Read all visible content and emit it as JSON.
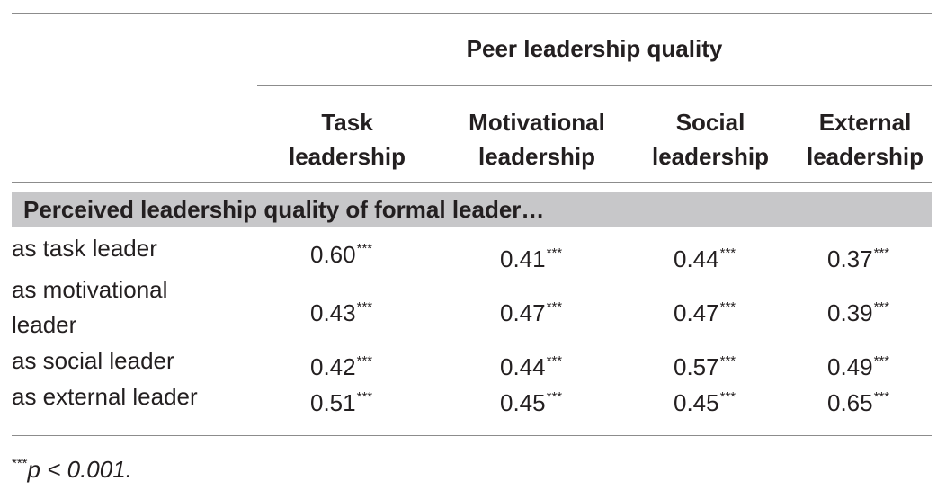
{
  "table": {
    "group_header": "Peer leadership quality",
    "columns": [
      {
        "line1": "Task",
        "line2": "leadership"
      },
      {
        "line1": "Motivational",
        "line2": "leadership"
      },
      {
        "line1": "Social",
        "line2": "leadership"
      },
      {
        "line1": "External",
        "line2": "leadership"
      }
    ],
    "section_label": "Perceived leadership quality of formal leader…",
    "rows": [
      {
        "label": "as task leader",
        "values": [
          "0.60",
          "0.41",
          "0.44",
          "0.37"
        ],
        "stars": [
          "***",
          "***",
          "***",
          "***"
        ]
      },
      {
        "label": "as motivational leader",
        "values": [
          "0.43",
          "0.47",
          "0.47",
          "0.39"
        ],
        "stars": [
          "***",
          "***",
          "***",
          "***"
        ]
      },
      {
        "label": "as social leader",
        "values": [
          "0.42",
          "0.44",
          "0.57",
          "0.49"
        ],
        "stars": [
          "***",
          "***",
          "***",
          "***"
        ]
      },
      {
        "label": "as external leader",
        "values": [
          "0.51",
          "0.45",
          "0.45",
          "0.65"
        ],
        "stars": [
          "***",
          "***",
          "***",
          "***"
        ]
      }
    ],
    "footnote": {
      "marker": "***",
      "text": "p < 0.001."
    }
  }
}
